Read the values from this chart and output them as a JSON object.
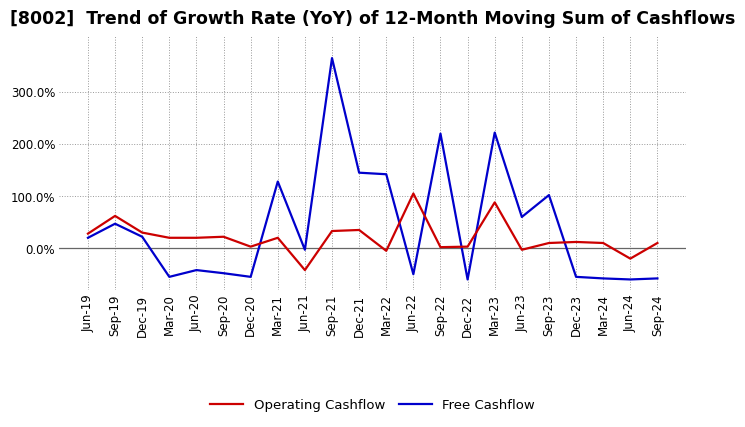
{
  "title": "[8002]  Trend of Growth Rate (YoY) of 12-Month Moving Sum of Cashflows",
  "background_color": "#ffffff",
  "grid_color": "#999999",
  "x_labels": [
    "Jun-19",
    "Sep-19",
    "Dec-19",
    "Mar-20",
    "Jun-20",
    "Sep-20",
    "Dec-20",
    "Mar-21",
    "Jun-21",
    "Sep-21",
    "Dec-21",
    "Mar-22",
    "Jun-22",
    "Sep-22",
    "Dec-22",
    "Mar-23",
    "Jun-23",
    "Sep-23",
    "Dec-23",
    "Mar-24",
    "Jun-24",
    "Sep-24"
  ],
  "operating_cashflow": [
    0.28,
    0.62,
    0.3,
    0.2,
    0.2,
    0.22,
    0.03,
    0.2,
    -0.42,
    0.33,
    0.35,
    -0.05,
    1.05,
    0.02,
    0.03,
    0.88,
    -0.03,
    0.1,
    0.12,
    0.1,
    -0.2,
    0.1
  ],
  "free_cashflow": [
    0.2,
    0.47,
    0.22,
    -0.55,
    -0.42,
    -0.48,
    -0.55,
    1.28,
    -0.03,
    3.65,
    1.45,
    1.42,
    -0.5,
    2.2,
    -0.6,
    2.22,
    0.6,
    1.02,
    -0.55,
    -0.58,
    -0.6,
    -0.58
  ],
  "operating_color": "#cc0000",
  "free_color": "#0000cc",
  "legend_labels": [
    "Operating Cashflow",
    "Free Cashflow"
  ],
  "ylim_min": -0.8,
  "ylim_max": 4.1,
  "ytick_vals": [
    0.0,
    1.0,
    2.0,
    3.0
  ],
  "ytick_labels": [
    "0.0%",
    "100.0%",
    "200.0%",
    "300.0%"
  ],
  "title_fontsize": 12.5,
  "tick_fontsize": 8.5,
  "legend_fontsize": 9.5
}
